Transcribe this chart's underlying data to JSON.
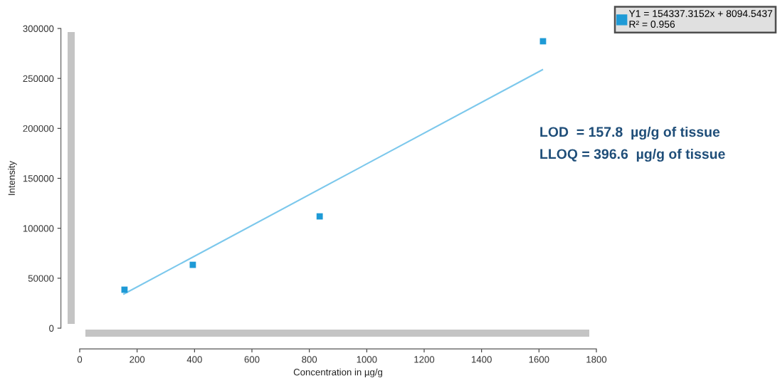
{
  "chart_data": {
    "type": "scatter",
    "xlabel": "Concentration in µg/g",
    "ylabel": "Intensity",
    "series": [
      {
        "name": "Y1 = 154337.3152x + 8094.5437\nR² = 0.956",
        "color": "#1e9ad6",
        "marker": "square",
        "x": [
          156,
          394,
          836,
          1614
        ],
        "values": [
          38500,
          63400,
          111900,
          287200
        ]
      },
      {
        "type": "line",
        "color": "#7cc8ec",
        "x": [
          154,
          1612
        ],
        "values": [
          34200,
          258700
        ]
      }
    ],
    "annotations": [
      "LOD  = 157.8  µg/g of tissue",
      "LLOQ = 396.6  µg/g of tissue"
    ],
    "xlim": [
      0,
      1800
    ],
    "xticks": [
      0,
      200,
      400,
      600,
      800,
      1000,
      1200,
      1400,
      1600,
      1800
    ],
    "ylim": [
      0,
      300000
    ],
    "yticks": [
      0,
      50000,
      100000,
      150000,
      200000,
      250000,
      300000
    ],
    "grid": false,
    "legend": "top right"
  }
}
